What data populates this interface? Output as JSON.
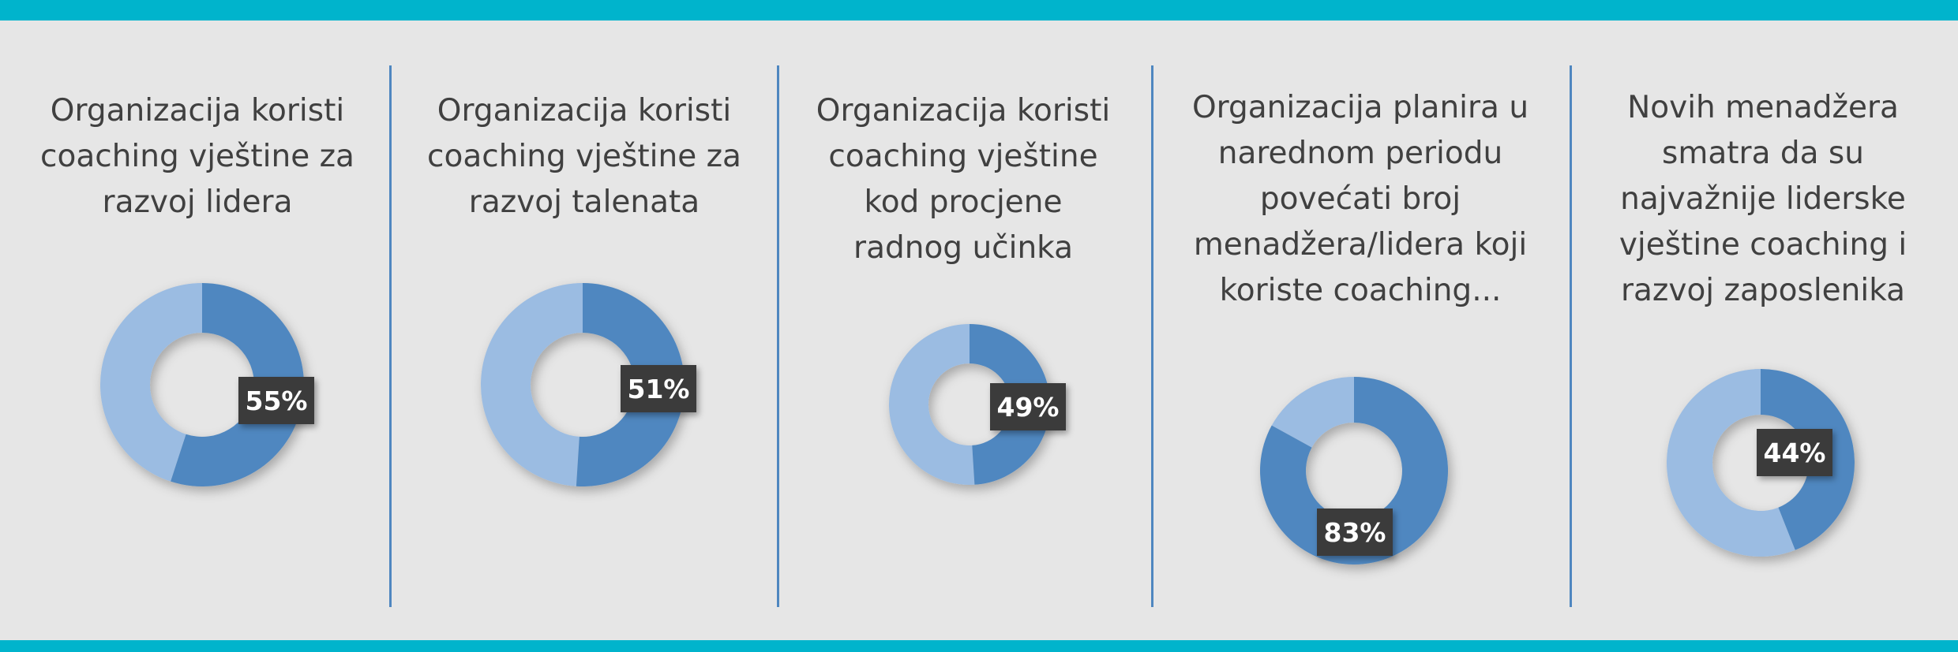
{
  "colors": {
    "band": "#00b4cc",
    "background": "#e6e6e6",
    "divider": "#4f87c0",
    "value_slice": "#4f87c0",
    "rest_slice": "#9bbce2",
    "label_bg": "#3b3b3b",
    "label_text": "#ffffff",
    "caption_text": "#404040"
  },
  "chart_data": [
    {
      "type": "pie",
      "donut": true,
      "title": "Organizacija koristi coaching vještine za razvoj lidera",
      "title_lines": [
        "Organizacija koristi",
        "coaching vještine za",
        "razvoj lidera"
      ],
      "value": 55,
      "label": "55%"
    },
    {
      "type": "pie",
      "donut": true,
      "title": "Organizacija koristi coaching vještine za razvoj talenata",
      "title_lines": [
        "Organizacija koristi",
        "coaching vještine za",
        "razvoj talenata"
      ],
      "value": 51,
      "label": "51%"
    },
    {
      "type": "pie",
      "donut": true,
      "title": "Organizacija koristi coaching vještine kod procjene radnog učinka",
      "title_lines": [
        "Organizacija koristi",
        "coaching vještine",
        "kod procjene",
        "radnog učinka"
      ],
      "value": 49,
      "label": "49%"
    },
    {
      "type": "pie",
      "donut": true,
      "title": "Organizacija planira u narednom periodu povećati broj menadžera/lidera koji koriste coaching...",
      "title_lines": [
        "Organizacija planira u",
        "narednom periodu",
        "povećati broj",
        "menadžera/lidera koji",
        "koriste coaching..."
      ],
      "value": 83,
      "label": "83%"
    },
    {
      "type": "pie",
      "donut": true,
      "title": "Novih menadžera smatra da su najvažnije liderske vještine coaching i razvoj zaposlenika",
      "title_lines": [
        "Novih menadžera",
        "smatra da su",
        "najvažnije liderske",
        "vještine coaching i",
        "razvoj zaposlenika"
      ],
      "value": 44,
      "label": "44%"
    }
  ]
}
